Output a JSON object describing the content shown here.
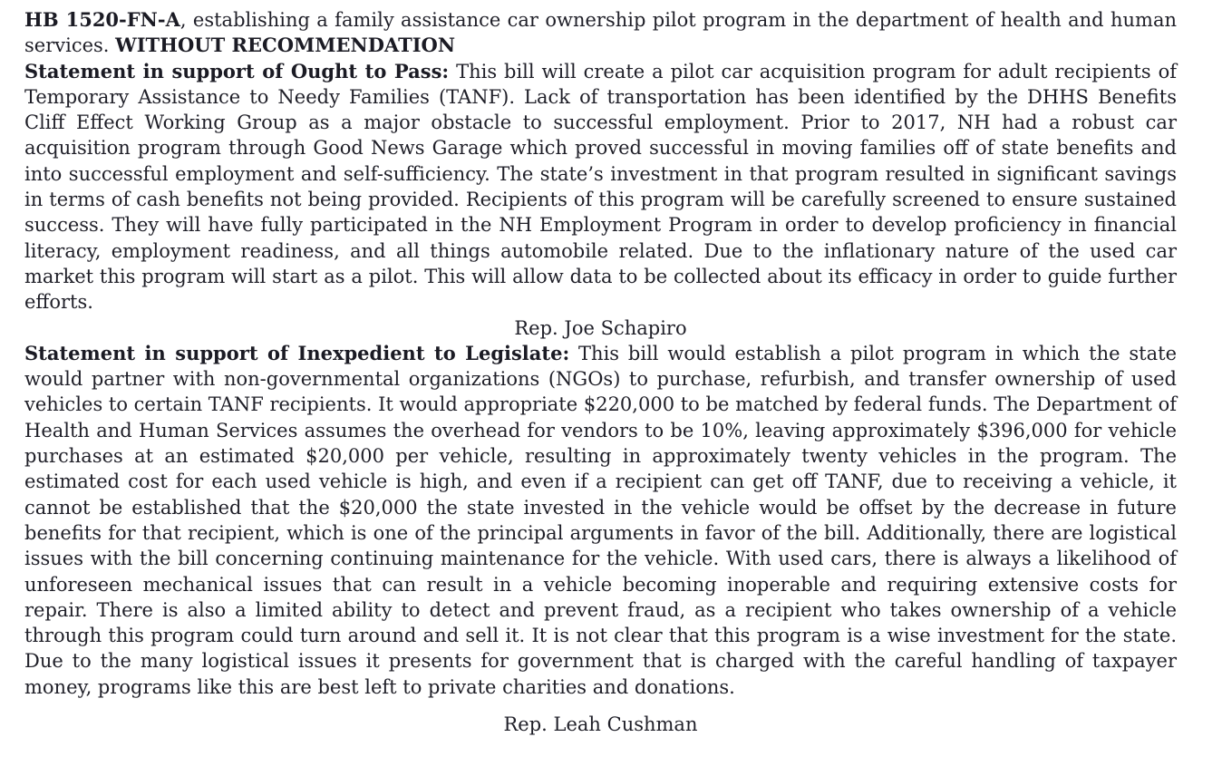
{
  "document": {
    "colors": {
      "text": "#1f1f28",
      "background": "#ffffff"
    },
    "bill": {
      "number": "HB 1520-FN-A",
      "description": ", establishing a family assistance car ownership pilot program in the department of health and human services. ",
      "recommendation": "WITHOUT RECOMMENDATION"
    },
    "statements": [
      {
        "heading": "Statement in support of Ought to Pass:",
        "body": " This bill will create a pilot car acquisition program for adult recipients of Temporary Assistance to Needy Families (TANF). Lack of transportation has been identified by the DHHS Benefits Cliff Effect Working Group as a major obstacle to successful employment. Prior to 2017, NH had a robust car acquisition program through Good News Garage which proved successful in moving families off of state benefits and into successful employment and self-sufficiency. The state’s investment in that program resulted in significant savings in terms of cash benefits not being provided. Recipients of this program will be carefully screened to ensure sustained success. They will have fully participated in the NH Employment Program in order to develop proficiency in financial literacy, employment readiness, and all things automobile related. Due to the inflationary nature of the used car market this program will start as a pilot. This will allow data to be collected about its efficacy in order to guide further efforts.",
        "attribution": "Rep. Joe Schapiro"
      },
      {
        "heading": "Statement in support of Inexpedient to Legislate:",
        "body": " This bill would establish a pilot program in which the state would partner with non-governmental organizations (NGOs) to purchase, refurbish, and transfer ownership of used vehicles to certain TANF recipients. It would appropriate $220,000 to be matched by federal funds. The Department of Health and Human Services assumes the overhead for vendors to be 10%, leaving approximately $396,000 for vehicle purchases at an estimated $20,000 per vehicle, resulting in approximately twenty vehicles in the program. The estimated cost for each used vehicle is high, and even if a recipient can get off TANF, due to receiving a vehicle, it cannot be established that the $20,000 the state invested in the vehicle would be offset by the decrease in future benefits for that recipient, which is one of the principal arguments in favor of the bill. Additionally, there are logistical issues with the bill concerning continuing maintenance for the vehicle. With used cars, there is always a likelihood of unforeseen mechanical issues that can result in a vehicle becoming inoperable and requiring extensive costs for repair. There is also a limited ability to detect and prevent fraud, as a recipient who takes ownership of a vehicle through this program could turn around and sell it. It is not clear that this program is a wise investment for the state. Due to the many logistical issues it presents for government that is charged with the careful handling of taxpayer money, programs like this are best left to private charities and donations.",
        "attribution": "Rep. Leah Cushman"
      }
    ]
  }
}
